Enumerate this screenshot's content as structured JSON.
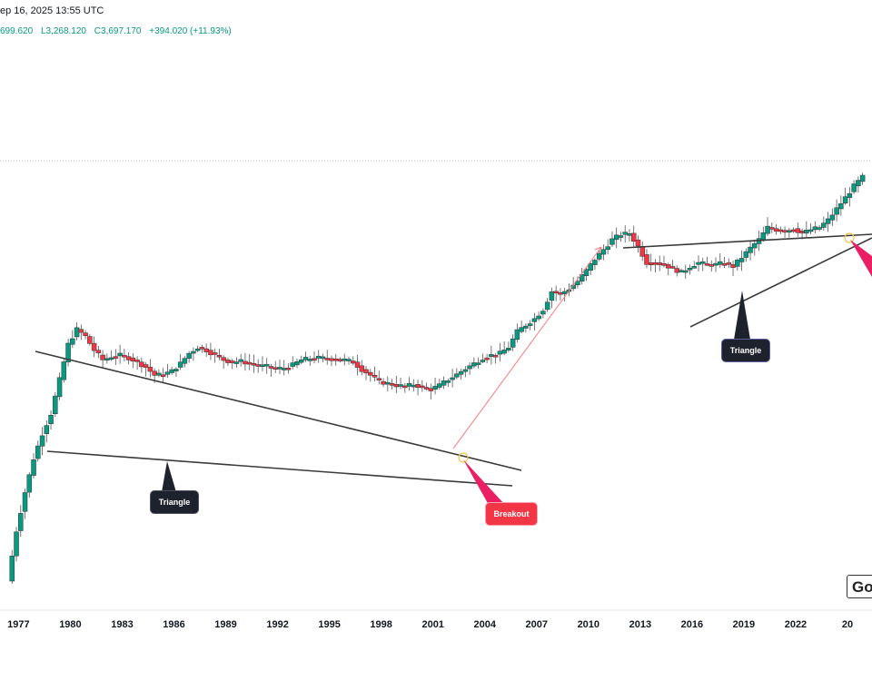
{
  "header": {
    "datetime": "ep 16, 2025 13:55 UTC",
    "open": "699.620",
    "low": "L3,268.120",
    "close": "C3,697.170",
    "change": "+394.020 (+11.93%)"
  },
  "colors": {
    "up": "#089981",
    "down": "#f23645",
    "trendline": "#3a3a3a",
    "projection": "#f77c80",
    "callout_dark": "#1e222d",
    "callout_red": "#f23645",
    "grid_dotted": "#b2b5be"
  },
  "annotations": {
    "triangle_left": "Triangle",
    "triangle_right": "Triangle",
    "breakout": "Breakout"
  },
  "logo": {
    "text": "Go"
  },
  "chart_data": {
    "type": "candlestick",
    "title": "",
    "x_tick_labels": [
      "1977",
      "1980",
      "1983",
      "1986",
      "1989",
      "1992",
      "1995",
      "1998",
      "2001",
      "2004",
      "2007",
      "2010",
      "2013",
      "2016",
      "2019",
      "2022",
      "20"
    ],
    "x_range": [
      1976.4,
      2026.0
    ],
    "y_scale": "log",
    "series": [
      {
        "name": "",
        "points": [
          {
            "year": 1976.5,
            "close": 0.05
          },
          {
            "year": 1977.0,
            "close": 0.1
          },
          {
            "year": 1977.5,
            "close": 0.17
          },
          {
            "year": 1978.0,
            "close": 0.27
          },
          {
            "year": 1978.5,
            "close": 0.38
          },
          {
            "year": 1979.0,
            "close": 0.5
          },
          {
            "year": 1979.5,
            "close": 0.8
          },
          {
            "year": 1980.0,
            "close": 1.3
          },
          {
            "year": 1980.5,
            "close": 1.6
          },
          {
            "year": 1981.0,
            "close": 1.45
          },
          {
            "year": 1981.5,
            "close": 1.2
          },
          {
            "year": 1982.0,
            "close": 1.05
          },
          {
            "year": 1982.5,
            "close": 1.1
          },
          {
            "year": 1983.0,
            "close": 1.12
          },
          {
            "year": 1983.5,
            "close": 1.08
          },
          {
            "year": 1984.0,
            "close": 1.02
          },
          {
            "year": 1984.5,
            "close": 0.95
          },
          {
            "year": 1985.0,
            "close": 0.85
          },
          {
            "year": 1985.5,
            "close": 0.86
          },
          {
            "year": 1986.0,
            "close": 0.9
          },
          {
            "year": 1986.5,
            "close": 1.0
          },
          {
            "year": 1987.0,
            "close": 1.15
          },
          {
            "year": 1987.5,
            "close": 1.25
          },
          {
            "year": 1988.0,
            "close": 1.2
          },
          {
            "year": 1988.5,
            "close": 1.12
          },
          {
            "year": 1989.0,
            "close": 1.05
          },
          {
            "year": 1989.5,
            "close": 1.02
          },
          {
            "year": 1990.0,
            "close": 1.03
          },
          {
            "year": 1990.5,
            "close": 1.0
          },
          {
            "year": 1991.0,
            "close": 0.97
          },
          {
            "year": 1991.5,
            "close": 0.96
          },
          {
            "year": 1992.0,
            "close": 0.93
          },
          {
            "year": 1992.5,
            "close": 0.94
          },
          {
            "year": 1993.0,
            "close": 0.98
          },
          {
            "year": 1993.5,
            "close": 1.05
          },
          {
            "year": 1994.0,
            "close": 1.07
          },
          {
            "year": 1994.5,
            "close": 1.08
          },
          {
            "year": 1995.0,
            "close": 1.07
          },
          {
            "year": 1995.5,
            "close": 1.06
          },
          {
            "year": 1996.0,
            "close": 1.05
          },
          {
            "year": 1996.5,
            "close": 1.02
          },
          {
            "year": 1997.0,
            "close": 0.92
          },
          {
            "year": 1997.5,
            "close": 0.85
          },
          {
            "year": 1998.0,
            "close": 0.78
          },
          {
            "year": 1998.5,
            "close": 0.76
          },
          {
            "year": 1999.0,
            "close": 0.74
          },
          {
            "year": 1999.5,
            "close": 0.73
          },
          {
            "year": 2000.0,
            "close": 0.75
          },
          {
            "year": 2000.5,
            "close": 0.72
          },
          {
            "year": 2001.0,
            "close": 0.7
          },
          {
            "year": 2001.5,
            "close": 0.74
          },
          {
            "year": 2002.0,
            "close": 0.8
          },
          {
            "year": 2002.5,
            "close": 0.86
          },
          {
            "year": 2003.0,
            "close": 0.93
          },
          {
            "year": 2003.5,
            "close": 1.0
          },
          {
            "year": 2004.0,
            "close": 1.08
          },
          {
            "year": 2004.5,
            "close": 1.12
          },
          {
            "year": 2005.0,
            "close": 1.15
          },
          {
            "year": 2005.5,
            "close": 1.25
          },
          {
            "year": 2006.0,
            "close": 1.55
          },
          {
            "year": 2006.5,
            "close": 1.7
          },
          {
            "year": 2007.0,
            "close": 1.85
          },
          {
            "year": 2007.5,
            "close": 2.1
          },
          {
            "year": 2008.0,
            "close": 2.7
          },
          {
            "year": 2008.5,
            "close": 2.6
          },
          {
            "year": 2009.0,
            "close": 2.8
          },
          {
            "year": 2009.5,
            "close": 3.1
          },
          {
            "year": 2010.0,
            "close": 3.6
          },
          {
            "year": 2010.5,
            "close": 4.2
          },
          {
            "year": 2011.0,
            "close": 4.8
          },
          {
            "year": 2011.5,
            "close": 5.5
          },
          {
            "year": 2012.0,
            "close": 5.9
          },
          {
            "year": 2012.5,
            "close": 6.0
          },
          {
            "year": 2013.0,
            "close": 5.0
          },
          {
            "year": 2013.5,
            "close": 4.0
          },
          {
            "year": 2014.0,
            "close": 4.0
          },
          {
            "year": 2014.5,
            "close": 3.9
          },
          {
            "year": 2015.0,
            "close": 3.7
          },
          {
            "year": 2015.5,
            "close": 3.5
          },
          {
            "year": 2016.0,
            "close": 3.8
          },
          {
            "year": 2016.5,
            "close": 4.0
          },
          {
            "year": 2017.0,
            "close": 3.9
          },
          {
            "year": 2017.5,
            "close": 3.9
          },
          {
            "year": 2018.0,
            "close": 4.0
          },
          {
            "year": 2018.5,
            "close": 3.8
          },
          {
            "year": 2019.0,
            "close": 4.3
          },
          {
            "year": 2019.5,
            "close": 4.9
          },
          {
            "year": 2020.0,
            "close": 5.5
          },
          {
            "year": 2020.5,
            "close": 6.5
          },
          {
            "year": 2021.0,
            "close": 6.3
          },
          {
            "year": 2021.5,
            "close": 6.2
          },
          {
            "year": 2022.0,
            "close": 6.4
          },
          {
            "year": 2022.5,
            "close": 6.0
          },
          {
            "year": 2023.0,
            "close": 6.3
          },
          {
            "year": 2023.5,
            "close": 6.5
          },
          {
            "year": 2024.0,
            "close": 7.2
          },
          {
            "year": 2024.5,
            "close": 8.4
          },
          {
            "year": 2025.0,
            "close": 9.8
          },
          {
            "year": 2025.5,
            "close": 11.5
          },
          {
            "year": 2026.0,
            "close": 13.0
          }
        ]
      }
    ]
  }
}
